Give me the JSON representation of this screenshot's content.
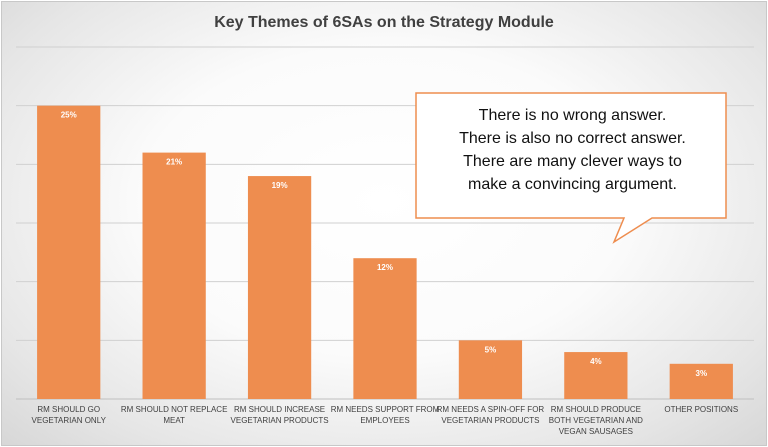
{
  "chart_data": {
    "type": "bar",
    "title": "Key Themes of 6SAs on the Strategy Module",
    "categories": [
      [
        "RM SHOULD GO",
        "VEGETARIAN ONLY"
      ],
      [
        "RM SHOULD NOT REPLACE",
        "MEAT"
      ],
      [
        "RM SHOULD INCREASE",
        "VEGETARIAN PRODUCTS"
      ],
      [
        "RM NEEDS SUPPORT FROM",
        "EMPLOYEES"
      ],
      [
        "RM NEEDS A SPIN-OFF FOR",
        "VEGETARIAN PRODUCTS"
      ],
      [
        "RM SHOULD PRODUCE",
        "BOTH VEGETARIAN AND",
        "VEGAN SAUSAGES"
      ],
      [
        "OTHER POSITIONS"
      ]
    ],
    "values": [
      25,
      21,
      19,
      12,
      5,
      4,
      3
    ],
    "data_labels": [
      "25%",
      "21%",
      "19%",
      "12%",
      "5%",
      "4%",
      "3%"
    ],
    "unit": "%",
    "ylim": [
      0,
      30
    ],
    "grid": true,
    "bar_color": "#ee8d4f"
  },
  "callout": {
    "lines": [
      "There is no wrong answer.",
      "There is also no correct answer.",
      "There are many clever ways to",
      "make a convincing argument."
    ],
    "border_color": "#ee8d4f"
  }
}
